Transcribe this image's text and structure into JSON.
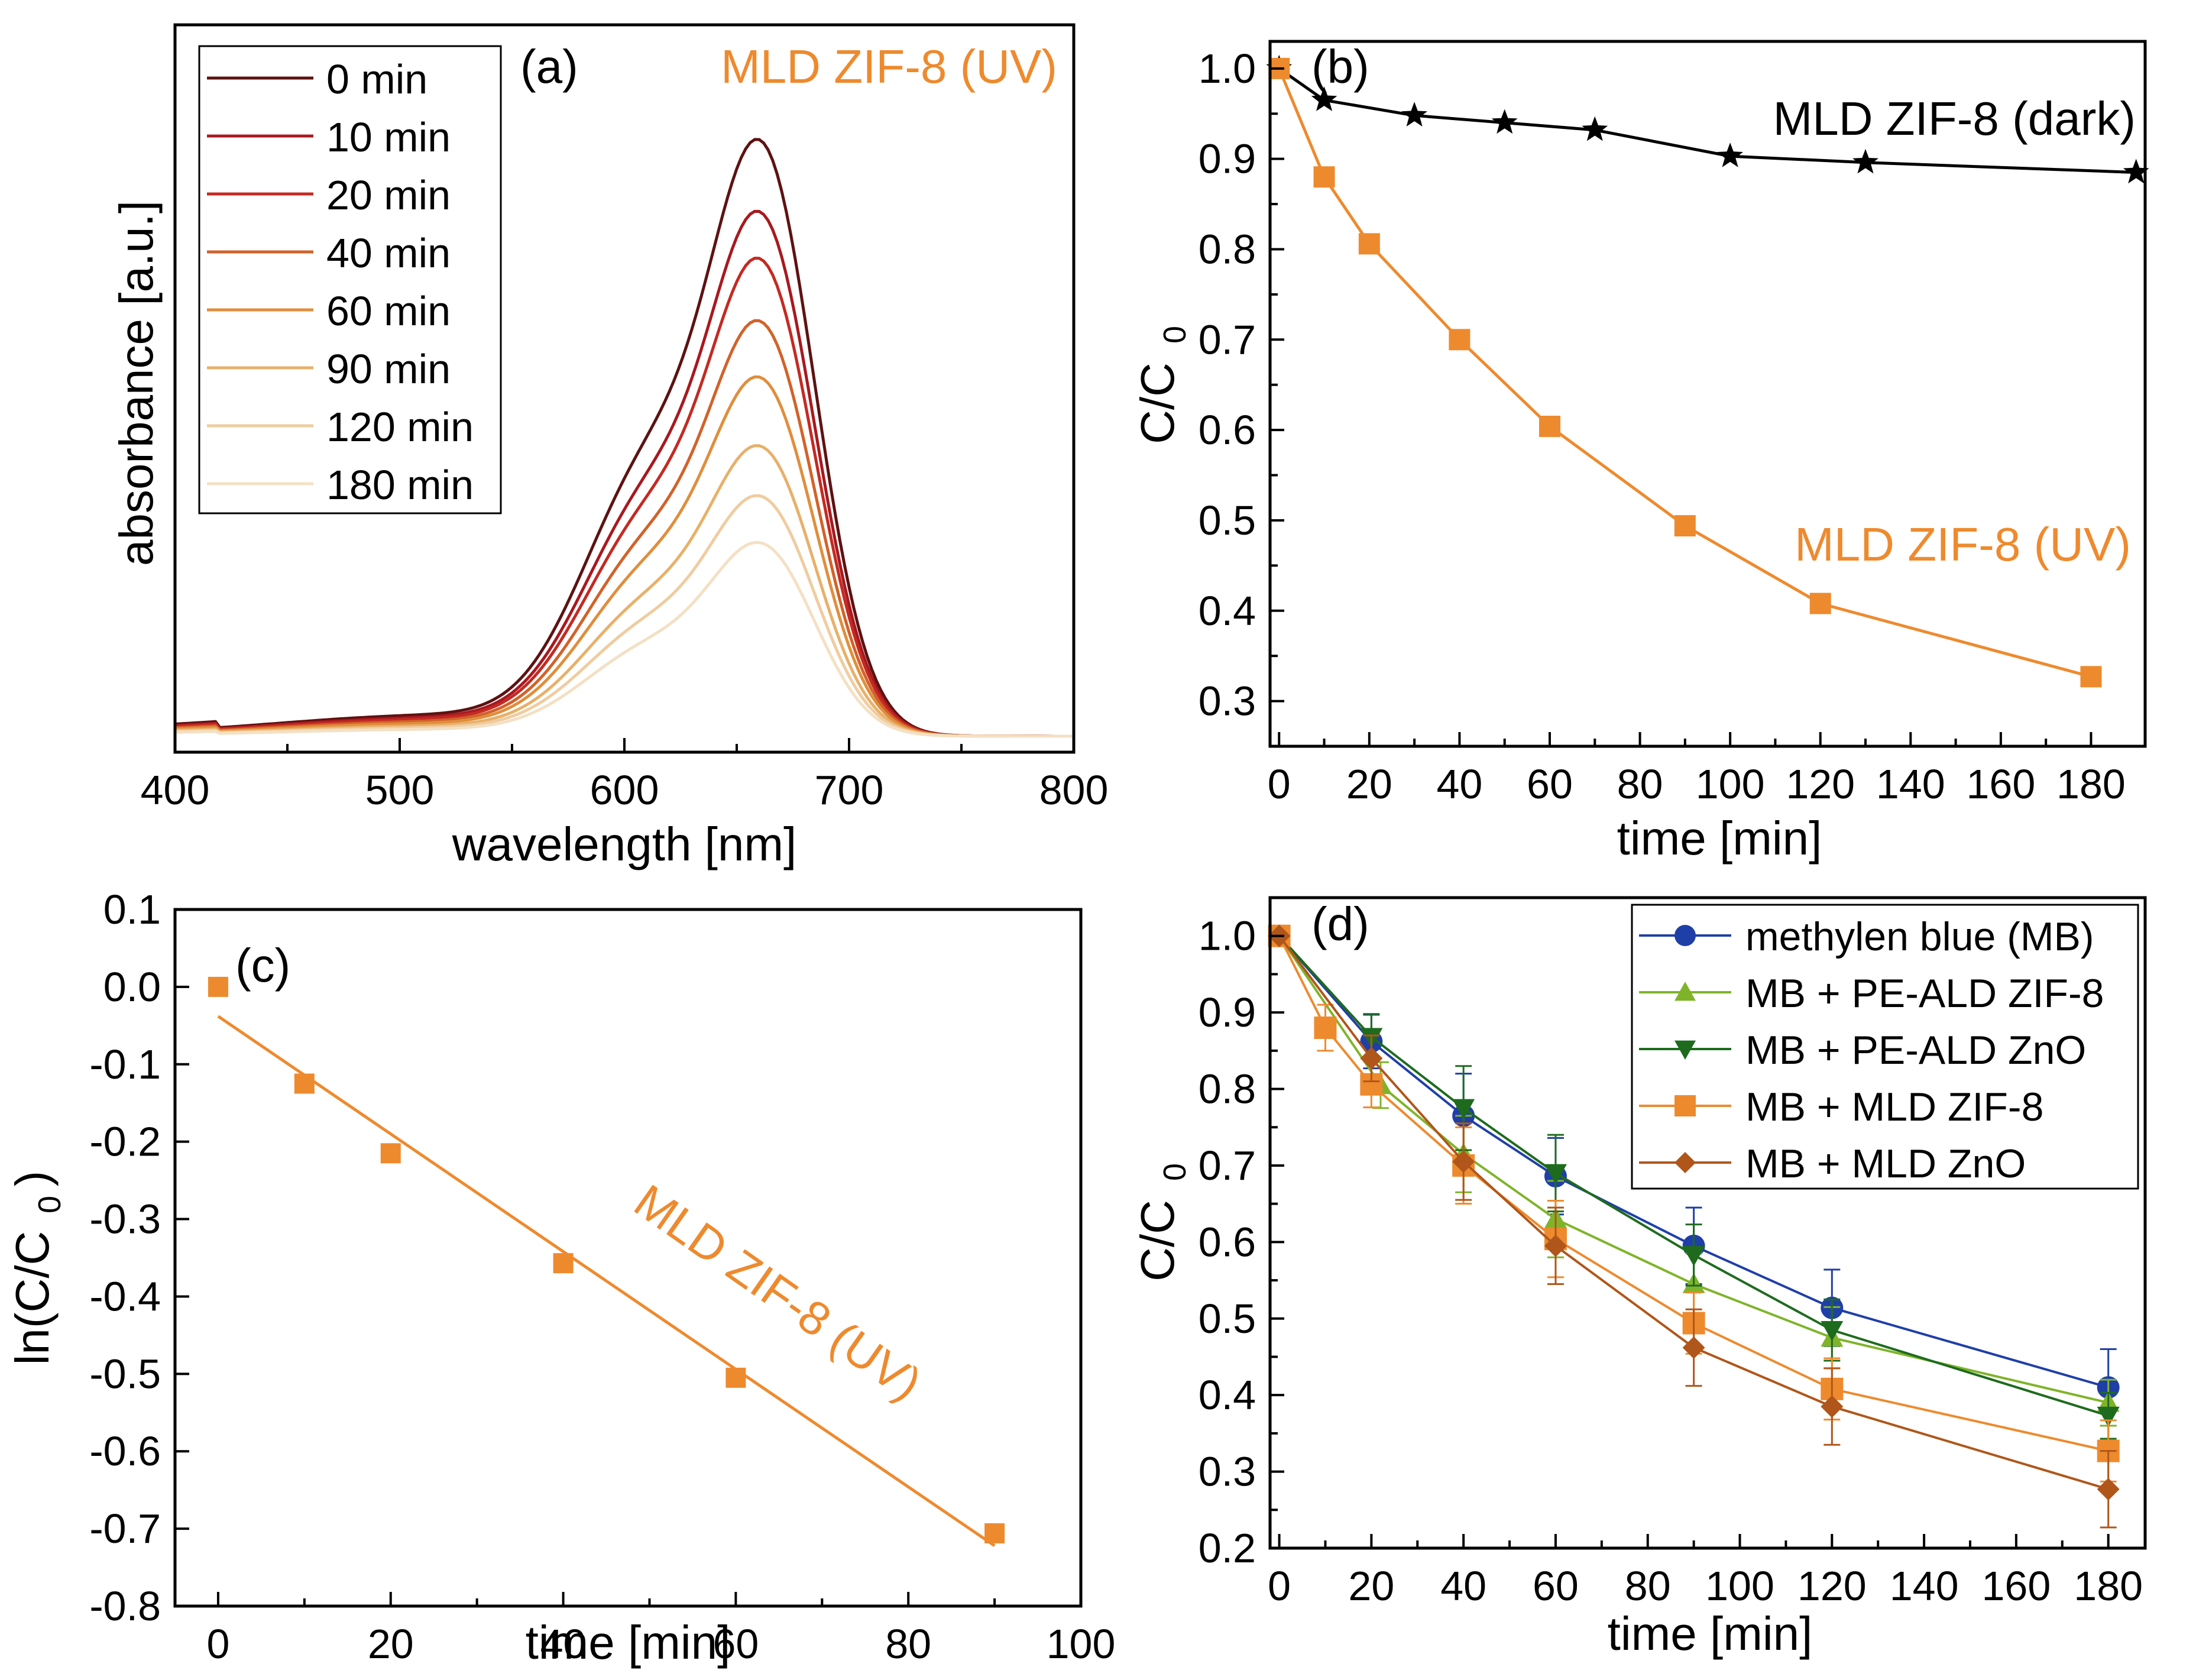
{
  "colors": {
    "orange": "#EE8A2E",
    "black": "#000000",
    "mb_blue": "#1F3FA8",
    "pe_zif8_green": "#7FB42A",
    "pe_zno_green": "#1E6B1E",
    "mld_zno_brown": "#B0561A",
    "spectra": [
      "#5E1212",
      "#A8191F",
      "#C42A22",
      "#D2622A",
      "#E08E3C",
      "#E8B06A",
      "#EFCC9F",
      "#F4E0C4"
    ]
  },
  "chart_data": [
    {
      "panel": "a",
      "type": "line",
      "tag": "(a)",
      "annotation": "MLD ZIF-8 (UV)",
      "xlabel": "wavelength [nm]",
      "ylabel": "absorbance [a.u.]",
      "xlim": [
        400,
        800
      ],
      "ylim": [
        0,
        1.0
      ],
      "xticks": [
        "400",
        "500",
        "600",
        "700",
        "800"
      ],
      "legend_position": "top-left",
      "series": [
        {
          "name": "0 min",
          "peak": 0.955
        },
        {
          "name": "10 min",
          "peak": 0.84
        },
        {
          "name": "20 min",
          "peak": 0.765
        },
        {
          "name": "40 min",
          "peak": 0.665
        },
        {
          "name": "60 min",
          "peak": 0.575
        },
        {
          "name": "90 min",
          "peak": 0.465
        },
        {
          "name": "120 min",
          "peak": 0.385
        },
        {
          "name": "180 min",
          "peak": 0.31
        }
      ]
    },
    {
      "panel": "b",
      "type": "line",
      "tag": "(b)",
      "xlabel": "time [min]",
      "ylabel_main": "C/C",
      "ylabel_sub": "0",
      "xlim": [
        -2,
        192
      ],
      "ylim": [
        0.25,
        1.03
      ],
      "xticks": [
        "0",
        "20",
        "40",
        "60",
        "80",
        "100",
        "120",
        "140",
        "160",
        "180"
      ],
      "yticks": [
        "0.3",
        "0.4",
        "0.5",
        "0.6",
        "0.7",
        "0.8",
        "0.9",
        "1.0"
      ],
      "series": [
        {
          "name": "MLD ZIF-8 (dark)",
          "marker": "star",
          "x": [
            0,
            10,
            30,
            50,
            70,
            100,
            130,
            190
          ],
          "values": [
            1.0,
            0.965,
            0.948,
            0.94,
            0.932,
            0.903,
            0.896,
            0.885
          ]
        },
        {
          "name": "MLD ZIF-8 (UV)",
          "marker": "square",
          "x": [
            0,
            10,
            20,
            40,
            60,
            90,
            120,
            180
          ],
          "values": [
            1.0,
            0.88,
            0.806,
            0.7,
            0.604,
            0.494,
            0.408,
            0.327
          ]
        }
      ]
    },
    {
      "panel": "c",
      "type": "scatter",
      "tag": "(c)",
      "annotation": "MLD ZIF-8 (UV)",
      "xlabel": "time [min]",
      "ylabel_main": "ln(C/C",
      "ylabel_sub": "0",
      "ylabel_end": ")",
      "xlim": [
        -5,
        100
      ],
      "ylim": [
        -0.8,
        0.1
      ],
      "xticks": [
        "0",
        "20",
        "40",
        "60",
        "80",
        "100"
      ],
      "yticks": [
        "0.1",
        "0.0",
        "-0.1",
        "-0.2",
        "-0.3",
        "-0.4",
        "-0.5",
        "-0.6",
        "-0.7",
        "-0.8"
      ],
      "points": {
        "x": [
          0,
          10,
          20,
          40,
          60,
          90
        ],
        "values": [
          0.0,
          -0.125,
          -0.215,
          -0.357,
          -0.505,
          -0.706
        ]
      },
      "fit": {
        "x": [
          0,
          90
        ],
        "values": [
          -0.038,
          -0.722
        ]
      }
    },
    {
      "panel": "d",
      "type": "line",
      "tag": "(d)",
      "xlabel": "time [min]",
      "ylabel_main": "C/C",
      "ylabel_sub": "0",
      "xlim": [
        -2,
        188
      ],
      "ylim": [
        0.2,
        1.05
      ],
      "xticks": [
        "0",
        "20",
        "40",
        "60",
        "80",
        "100",
        "120",
        "140",
        "160",
        "180"
      ],
      "yticks": [
        "0.2",
        "0.3",
        "0.4",
        "0.5",
        "0.6",
        "0.7",
        "0.8",
        "0.9",
        "1.0"
      ],
      "legend_position": "top-right",
      "series": [
        {
          "name": "methylen blue (MB)",
          "marker": "circle",
          "x": [
            0,
            20,
            40,
            60,
            90,
            120,
            180
          ],
          "values": [
            1.0,
            0.862,
            0.765,
            0.686,
            0.595,
            0.514,
            0.41
          ],
          "err": [
            0,
            0.035,
            0.055,
            0.05,
            0.05,
            0.05,
            0.05
          ]
        },
        {
          "name": "MB + PE-ALD ZIF-8",
          "marker": "triangle-up",
          "x": [
            0,
            22,
            40,
            60,
            90,
            120,
            180
          ],
          "values": [
            1.0,
            0.805,
            0.715,
            0.63,
            0.545,
            0.475,
            0.39
          ],
          "err": [
            0,
            0.03,
            0.05,
            0.05,
            0.04,
            0.04,
            0.03
          ]
        },
        {
          "name": "MB + PE-ALD ZnO",
          "marker": "triangle-down",
          "x": [
            0,
            20,
            40,
            60,
            90,
            120,
            180
          ],
          "values": [
            1.0,
            0.868,
            0.775,
            0.69,
            0.583,
            0.485,
            0.373
          ],
          "err": [
            0,
            0.03,
            0.055,
            0.05,
            0.04,
            0.04,
            0.03
          ]
        },
        {
          "name": "MB + MLD ZIF-8",
          "marker": "square",
          "x": [
            0,
            10,
            20,
            40,
            60,
            90,
            120,
            180
          ],
          "values": [
            1.0,
            0.88,
            0.806,
            0.7,
            0.604,
            0.494,
            0.408,
            0.327
          ],
          "err": [
            0,
            0.03,
            0.03,
            0.05,
            0.05,
            0.04,
            0.04,
            0.04
          ]
        },
        {
          "name": "MB + MLD ZnO",
          "marker": "diamond",
          "x": [
            0,
            20,
            40,
            60,
            90,
            120,
            180
          ],
          "values": [
            1.0,
            0.84,
            0.705,
            0.595,
            0.462,
            0.385,
            0.277
          ],
          "err": [
            0,
            0.03,
            0.05,
            0.05,
            0.05,
            0.05,
            0.05
          ]
        }
      ]
    }
  ]
}
